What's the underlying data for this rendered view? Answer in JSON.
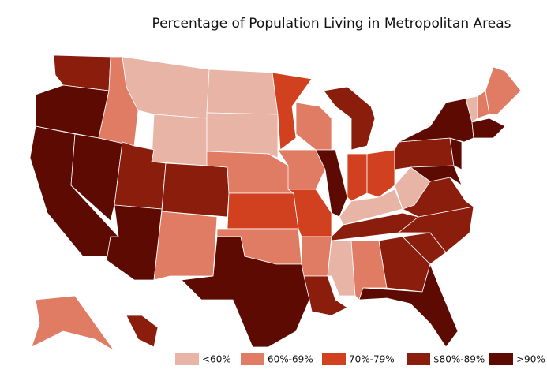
{
  "title": "Percentage of Population Living in Metropolitan Areas",
  "legend": [
    {
      "label": "<60%",
      "color": "#e8b4a6"
    },
    {
      "label": "60%-69%",
      "color": "#e07b64"
    },
    {
      "label": "70%-79%",
      "color": "#d2411f"
    },
    {
      "label": "$80%-89%",
      "color": "#8b1d0d"
    },
    {
      "label": ">90%",
      "color": "#5c0a02"
    }
  ],
  "regions": [
    3,
    4,
    4,
    4,
    1,
    0,
    0,
    3,
    4,
    3,
    1,
    0,
    0,
    1,
    2,
    1,
    4,
    2,
    1,
    2,
    1,
    3,
    1,
    4,
    3,
    2,
    2,
    0,
    3,
    0,
    1,
    3,
    4,
    3,
    3,
    3,
    0,
    3,
    4,
    4,
    4,
    0,
    1,
    1,
    4,
    1,
    3
  ]
}
